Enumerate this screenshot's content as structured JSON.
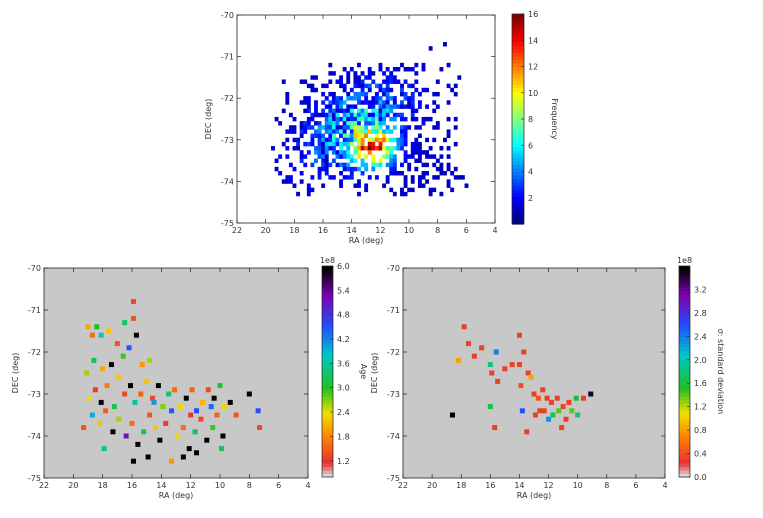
{
  "chart_data": [
    {
      "type": "heatmap",
      "xlabel": "RA (deg)",
      "ylabel": "DEC (deg)",
      "xlim": [
        22,
        4
      ],
      "ylim": [
        -75,
        -70
      ],
      "xticks": [
        "22",
        "20",
        "18",
        "16",
        "14",
        "12",
        "10",
        "8",
        "6",
        "4"
      ],
      "yticks": [
        "-70",
        "-71",
        "-72",
        "-73",
        "-74",
        "-75"
      ],
      "colorbar": {
        "label": "Frequency",
        "range": [
          0,
          16
        ],
        "ticks": [
          "2",
          "4",
          "6",
          "8",
          "10",
          "12",
          "14",
          "16"
        ],
        "colormap": "jet"
      },
      "description_peak": {
        "ra": 12.5,
        "dec": -73.2,
        "value": 16
      },
      "points": [
        {
          "ra": 8.4,
          "dec": -70.8,
          "value": 1
        },
        {
          "ra": 7.4,
          "dec": -70.7,
          "value": 1
        },
        {
          "ra": 6.3,
          "dec": -73.9,
          "value": 1
        },
        {
          "ra": 6.0,
          "dec": -74.1,
          "value": 1
        }
      ]
    },
    {
      "type": "scatter",
      "xlabel": "RA (deg)",
      "ylabel": "DEC (deg)",
      "xlim": [
        22,
        4
      ],
      "ylim": [
        -75,
        -70
      ],
      "xticks": [
        "22",
        "20",
        "18",
        "16",
        "14",
        "12",
        "10",
        "8",
        "6",
        "4"
      ],
      "yticks": [
        "-70",
        "-71",
        "-72",
        "-73",
        "-74",
        "-75"
      ],
      "colorbar": {
        "label": "Age",
        "exponent": "1e8",
        "range": [
          0.8,
          6.0
        ],
        "ticks": [
          "1.2",
          "1.8",
          "2.4",
          "3.0",
          "3.6",
          "4.2",
          "4.8",
          "5.4",
          "6.0"
        ]
      },
      "points": [
        [
          19.0,
          -71.4,
          2.0
        ],
        [
          18.7,
          -71.6,
          1.6
        ],
        [
          18.4,
          -71.4,
          3.0
        ],
        [
          18.1,
          -71.6,
          3.8
        ],
        [
          17.6,
          -71.5,
          2.2
        ],
        [
          19.1,
          -72.5,
          2.6
        ],
        [
          18.6,
          -72.2,
          3.3
        ],
        [
          18.0,
          -72.4,
          2.0
        ],
        [
          17.4,
          -72.3,
          6.0
        ],
        [
          17.0,
          -71.8,
          1.4
        ],
        [
          16.6,
          -72.1,
          2.9
        ],
        [
          16.2,
          -71.9,
          4.5
        ],
        [
          15.9,
          -71.2,
          1.4
        ],
        [
          15.7,
          -71.6,
          6.0
        ],
        [
          15.3,
          -72.3,
          1.9
        ],
        [
          14.8,
          -72.2,
          2.6
        ],
        [
          18.9,
          -73.1,
          2.3
        ],
        [
          18.5,
          -72.9,
          1.2
        ],
        [
          18.1,
          -73.2,
          6.0
        ],
        [
          17.7,
          -72.8,
          1.7
        ],
        [
          17.2,
          -73.3,
          3.2
        ],
        [
          16.9,
          -72.6,
          2.2
        ],
        [
          16.5,
          -73.0,
          1.3
        ],
        [
          16.1,
          -72.8,
          6.0
        ],
        [
          15.8,
          -73.2,
          3.6
        ],
        [
          15.4,
          -73.0,
          1.5
        ],
        [
          15.0,
          -72.7,
          2.2
        ],
        [
          14.6,
          -73.1,
          1.3
        ],
        [
          14.2,
          -72.8,
          6.0
        ],
        [
          13.9,
          -73.3,
          2.7
        ],
        [
          13.5,
          -73.0,
          3.4
        ],
        [
          13.1,
          -72.9,
          1.6
        ],
        [
          12.7,
          -73.3,
          2.4
        ],
        [
          12.3,
          -73.1,
          6.0
        ],
        [
          11.9,
          -72.9,
          1.5
        ],
        [
          11.6,
          -73.4,
          4.6
        ],
        [
          11.2,
          -73.2,
          2.1
        ],
        [
          10.8,
          -72.9,
          1.3
        ],
        [
          10.4,
          -73.1,
          6.0
        ],
        [
          10.0,
          -72.8,
          3.1
        ],
        [
          9.7,
          -73.3,
          2.3
        ],
        [
          9.3,
          -73.2,
          6.0
        ],
        [
          8.9,
          -73.5,
          1.4
        ],
        [
          8.0,
          -73.0,
          6.0
        ],
        [
          7.4,
          -73.4,
          4.6
        ],
        [
          7.3,
          -73.8,
          1.3
        ],
        [
          19.3,
          -73.8,
          1.4
        ],
        [
          18.7,
          -73.5,
          4.0
        ],
        [
          18.2,
          -73.7,
          2.2
        ],
        [
          17.8,
          -73.4,
          1.5
        ],
        [
          17.3,
          -73.9,
          6.0
        ],
        [
          16.9,
          -73.6,
          2.6
        ],
        [
          16.4,
          -74.0,
          5.2
        ],
        [
          16.0,
          -73.7,
          1.6
        ],
        [
          15.6,
          -74.2,
          6.0
        ],
        [
          15.2,
          -73.9,
          3.2
        ],
        [
          14.8,
          -73.5,
          1.4
        ],
        [
          14.4,
          -73.8,
          2.2
        ],
        [
          14.1,
          -74.1,
          6.0
        ],
        [
          13.7,
          -73.7,
          1.2
        ],
        [
          13.3,
          -73.4,
          4.5
        ],
        [
          12.9,
          -74.0,
          2.3
        ],
        [
          12.5,
          -73.8,
          1.6
        ],
        [
          12.1,
          -74.3,
          6.0
        ],
        [
          11.7,
          -73.9,
          3.3
        ],
        [
          11.3,
          -73.6,
          1.3
        ],
        [
          10.9,
          -74.1,
          6.0
        ],
        [
          10.5,
          -73.8,
          2.9
        ],
        [
          10.2,
          -73.5,
          1.5
        ],
        [
          9.8,
          -74.0,
          6.0
        ],
        [
          15.9,
          -74.6,
          6.0
        ],
        [
          14.9,
          -74.5,
          6.0
        ],
        [
          13.3,
          -74.6,
          1.9
        ],
        [
          12.5,
          -74.5,
          6.0
        ],
        [
          11.6,
          -74.4,
          6.0
        ],
        [
          9.9,
          -74.3,
          3.3
        ],
        [
          15.9,
          -70.8,
          1.3
        ],
        [
          16.5,
          -71.3,
          3.4
        ],
        [
          14.5,
          -73.2,
          4.1
        ],
        [
          12.0,
          -73.5,
          1.1
        ],
        [
          10.6,
          -73.3,
          4.4
        ],
        [
          17.9,
          -74.3,
          3.5
        ]
      ]
    },
    {
      "type": "scatter",
      "xlabel": "RA (deg)",
      "ylabel": "DEC (deg)",
      "xlim": [
        22,
        4
      ],
      "ylim": [
        -75,
        -70
      ],
      "xticks": [
        "22",
        "20",
        "18",
        "16",
        "14",
        "12",
        "10",
        "8",
        "6",
        "4"
      ],
      "yticks": [
        "-70",
        "-71",
        "-72",
        "-73",
        "-74",
        "-75"
      ],
      "colorbar": {
        "label": "σ: standard deviation",
        "exponent": "1e8",
        "range": [
          0.0,
          3.6
        ],
        "ticks": [
          "0.0",
          "0.4",
          "0.8",
          "1.2",
          "1.6",
          "2.0",
          "2.4",
          "2.8",
          "3.2"
        ]
      },
      "points": [
        [
          17.8,
          -71.4,
          0.3
        ],
        [
          17.5,
          -71.8,
          0.3
        ],
        [
          18.2,
          -72.2,
          0.8
        ],
        [
          17.1,
          -72.1,
          0.3
        ],
        [
          16.6,
          -71.9,
          0.3
        ],
        [
          16.0,
          -72.3,
          1.8
        ],
        [
          15.6,
          -72.0,
          2.4
        ],
        [
          15.9,
          -72.5,
          0.3
        ],
        [
          15.5,
          -72.7,
          0.3
        ],
        [
          15.0,
          -72.4,
          0.3
        ],
        [
          14.5,
          -72.3,
          0.3
        ],
        [
          14.0,
          -72.3,
          0.3
        ],
        [
          13.7,
          -72.0,
          0.3
        ],
        [
          14.0,
          -71.6,
          0.3
        ],
        [
          13.4,
          -72.5,
          0.3
        ],
        [
          13.9,
          -72.8,
          0.4
        ],
        [
          13.2,
          -72.6,
          0.8
        ],
        [
          13.0,
          -73.0,
          0.3
        ],
        [
          12.7,
          -73.1,
          0.4
        ],
        [
          12.4,
          -72.9,
          0.3
        ],
        [
          12.1,
          -73.1,
          0.3
        ],
        [
          11.8,
          -73.2,
          0.3
        ],
        [
          11.4,
          -73.1,
          0.3
        ],
        [
          11.0,
          -73.3,
          0.3
        ],
        [
          10.6,
          -73.2,
          0.3
        ],
        [
          10.4,
          -73.4,
          1.4
        ],
        [
          10.1,
          -73.1,
          1.6
        ],
        [
          10.0,
          -73.5,
          1.8
        ],
        [
          9.6,
          -73.1,
          0.3
        ],
        [
          9.1,
          -73.0,
          3.5
        ],
        [
          12.6,
          -73.4,
          0.3
        ],
        [
          12.3,
          -73.4,
          0.3
        ],
        [
          11.7,
          -73.5,
          1.7
        ],
        [
          11.3,
          -73.4,
          1.4
        ],
        [
          10.8,
          -73.6,
          0.3
        ],
        [
          12.0,
          -73.6,
          2.3
        ],
        [
          13.8,
          -73.4,
          2.6
        ],
        [
          13.5,
          -73.9,
          0.3
        ],
        [
          18.6,
          -73.5,
          3.9
        ],
        [
          16.0,
          -73.3,
          1.6
        ],
        [
          15.7,
          -73.8,
          0.3
        ],
        [
          12.9,
          -73.5,
          0.3
        ],
        [
          11.1,
          -73.8,
          0.3
        ]
      ]
    }
  ]
}
